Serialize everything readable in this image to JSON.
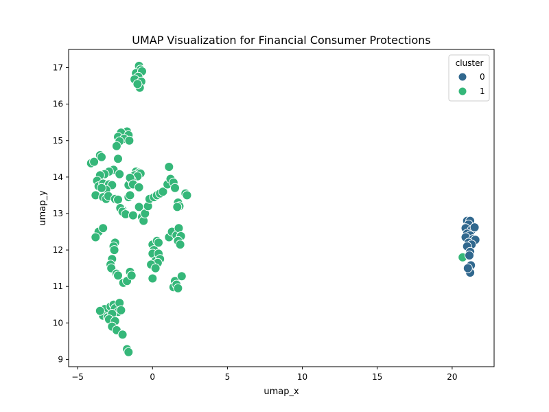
{
  "chart_data": {
    "type": "scatter",
    "title": "UMAP Visualization for Financial Consumer Protections",
    "xlabel": "umap_x",
    "ylabel": "umap_y",
    "xlim": [
      -5.6,
      22.8
    ],
    "ylim": [
      8.8,
      17.5
    ],
    "xticks": [
      -5,
      0,
      5,
      10,
      15,
      20
    ],
    "yticks": [
      9,
      10,
      11,
      12,
      13,
      14,
      15,
      16,
      17
    ],
    "grid": false,
    "legend": {
      "title": "cluster",
      "position": "top-right",
      "entries": [
        {
          "label": "0",
          "color": "#31688e"
        },
        {
          "label": "1",
          "color": "#35b779"
        }
      ]
    },
    "series": [
      {
        "name": "0",
        "color": "#31688e",
        "points": [
          [
            21.0,
            12.8
          ],
          [
            21.2,
            12.8
          ],
          [
            21.1,
            12.7
          ],
          [
            20.9,
            12.6
          ],
          [
            21.3,
            12.55
          ],
          [
            21.5,
            12.62
          ],
          [
            21.0,
            12.45
          ],
          [
            21.2,
            12.4
          ],
          [
            20.9,
            12.35
          ],
          [
            21.4,
            12.3
          ],
          [
            21.55,
            12.28
          ],
          [
            21.1,
            12.2
          ],
          [
            21.3,
            12.15
          ],
          [
            21.0,
            12.1
          ],
          [
            21.2,
            11.95
          ],
          [
            21.15,
            11.85
          ],
          [
            21.25,
            11.58
          ],
          [
            21.2,
            11.38
          ],
          [
            21.05,
            11.5
          ]
        ]
      },
      {
        "name": "1",
        "color": "#35b779",
        "points": [
          [
            20.7,
            11.8
          ],
          [
            -0.9,
            17.05
          ],
          [
            -0.8,
            16.95
          ],
          [
            -1.1,
            16.85
          ],
          [
            -0.7,
            16.9
          ],
          [
            -0.95,
            16.75
          ],
          [
            -1.2,
            16.68
          ],
          [
            -0.75,
            16.62
          ],
          [
            -0.85,
            16.45
          ],
          [
            -1.0,
            16.55
          ],
          [
            -1.7,
            15.25
          ],
          [
            -2.1,
            15.22
          ],
          [
            -1.6,
            15.15
          ],
          [
            -2.3,
            15.1
          ],
          [
            -1.9,
            15.05
          ],
          [
            -1.55,
            15.0
          ],
          [
            -2.2,
            14.98
          ],
          [
            -2.4,
            14.85
          ],
          [
            -4.1,
            14.38
          ],
          [
            -3.9,
            14.42
          ],
          [
            -3.5,
            14.6
          ],
          [
            -3.4,
            14.55
          ],
          [
            -2.3,
            14.5
          ],
          [
            -1.1,
            14.15
          ],
          [
            -0.9,
            14.12
          ],
          [
            -0.8,
            14.1
          ],
          [
            -1.2,
            14.05
          ],
          [
            -1.0,
            14.02
          ],
          [
            -2.6,
            14.2
          ],
          [
            -2.9,
            14.15
          ],
          [
            -3.2,
            14.08
          ],
          [
            -3.5,
            14.05
          ],
          [
            -2.2,
            14.08
          ],
          [
            -3.7,
            13.9
          ],
          [
            -3.6,
            13.75
          ],
          [
            -3.3,
            13.82
          ],
          [
            -2.9,
            13.8
          ],
          [
            -2.7,
            13.78
          ],
          [
            -3.1,
            13.65
          ],
          [
            -3.4,
            13.7
          ],
          [
            -1.6,
            13.78
          ],
          [
            -1.4,
            13.92
          ],
          [
            -1.5,
            13.98
          ],
          [
            -1.3,
            13.8
          ],
          [
            -0.9,
            13.72
          ],
          [
            -3.8,
            13.5
          ],
          [
            -3.3,
            13.45
          ],
          [
            -3.1,
            13.4
          ],
          [
            -2.95,
            13.48
          ],
          [
            -2.5,
            13.4
          ],
          [
            -2.3,
            13.38
          ],
          [
            -1.6,
            13.45
          ],
          [
            -1.5,
            13.5
          ],
          [
            -2.0,
            13.1
          ],
          [
            -2.15,
            13.15
          ],
          [
            -2.0,
            13.05
          ],
          [
            -1.8,
            12.98
          ],
          [
            -1.3,
            12.95
          ],
          [
            -0.9,
            13.18
          ],
          [
            -0.7,
            12.9
          ],
          [
            -0.6,
            12.8
          ],
          [
            -0.5,
            13.0
          ],
          [
            -0.3,
            13.2
          ],
          [
            -0.2,
            13.4
          ],
          [
            0.1,
            13.45
          ],
          [
            0.3,
            13.5
          ],
          [
            0.5,
            13.55
          ],
          [
            0.7,
            13.6
          ],
          [
            1.0,
            13.8
          ],
          [
            1.2,
            13.95
          ],
          [
            1.4,
            13.85
          ],
          [
            1.1,
            14.28
          ],
          [
            1.5,
            13.7
          ],
          [
            1.7,
            13.3
          ],
          [
            1.8,
            13.2
          ],
          [
            1.65,
            13.18
          ],
          [
            2.2,
            13.55
          ],
          [
            2.3,
            13.5
          ],
          [
            -3.6,
            12.5
          ],
          [
            -3.8,
            12.35
          ],
          [
            -3.3,
            12.6
          ],
          [
            -2.5,
            12.2
          ],
          [
            -2.6,
            12.1
          ],
          [
            -2.55,
            12.0
          ],
          [
            -2.7,
            11.75
          ],
          [
            -2.8,
            11.6
          ],
          [
            -2.75,
            11.5
          ],
          [
            -2.4,
            11.35
          ],
          [
            -2.3,
            11.3
          ],
          [
            -1.95,
            11.1
          ],
          [
            -1.7,
            11.15
          ],
          [
            -1.5,
            11.4
          ],
          [
            -1.4,
            11.3
          ],
          [
            0.0,
            12.15
          ],
          [
            0.1,
            12.0
          ],
          [
            0.3,
            12.25
          ],
          [
            0.4,
            12.2
          ],
          [
            0.0,
            11.9
          ],
          [
            0.2,
            11.7
          ],
          [
            0.4,
            11.9
          ],
          [
            0.5,
            11.75
          ],
          [
            0.35,
            11.65
          ],
          [
            -0.1,
            11.6
          ],
          [
            0.2,
            11.5
          ],
          [
            0.0,
            11.22
          ],
          [
            1.1,
            12.35
          ],
          [
            1.3,
            12.5
          ],
          [
            1.6,
            12.4
          ],
          [
            1.75,
            12.6
          ],
          [
            1.9,
            12.38
          ],
          [
            1.7,
            12.25
          ],
          [
            1.85,
            12.15
          ],
          [
            1.5,
            11.15
          ],
          [
            1.55,
            11.0
          ],
          [
            1.4,
            10.98
          ],
          [
            1.6,
            11.05
          ],
          [
            1.7,
            10.95
          ],
          [
            1.95,
            11.28
          ],
          [
            -3.4,
            10.35
          ],
          [
            -3.2,
            10.38
          ],
          [
            -3.3,
            10.2
          ],
          [
            -3.0,
            10.15
          ],
          [
            -2.8,
            10.45
          ],
          [
            -2.6,
            10.5
          ],
          [
            -2.5,
            10.4
          ],
          [
            -2.2,
            10.55
          ],
          [
            -2.3,
            10.3
          ],
          [
            -2.1,
            10.35
          ],
          [
            -2.7,
            10.25
          ],
          [
            -2.9,
            10.1
          ],
          [
            -2.5,
            10.05
          ],
          [
            -2.7,
            9.9
          ],
          [
            -2.4,
            9.8
          ],
          [
            -2.0,
            9.68
          ],
          [
            -1.7,
            9.28
          ],
          [
            -1.6,
            9.2
          ],
          [
            -3.5,
            10.33
          ]
        ]
      }
    ]
  }
}
